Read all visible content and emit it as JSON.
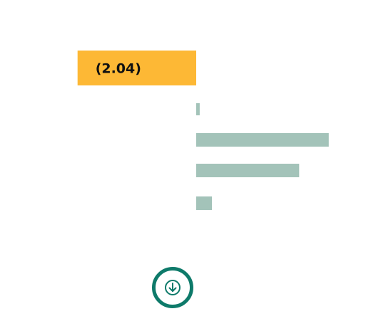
{
  "colors": {
    "highlight": "#fdb835",
    "bar": "#a3c3b9",
    "accent": "#0e7a6a",
    "label_text": "#111111"
  },
  "chart_data": {
    "type": "bar",
    "orientation": "horizontal",
    "highlight": {
      "label": "(2.04)",
      "value": -2.04
    },
    "values": [
      0.06,
      2.28,
      1.77,
      0.27
    ],
    "xlim": [
      -2.04,
      2.28
    ]
  },
  "download": {
    "icon": "arrow-down-circle-icon"
  }
}
